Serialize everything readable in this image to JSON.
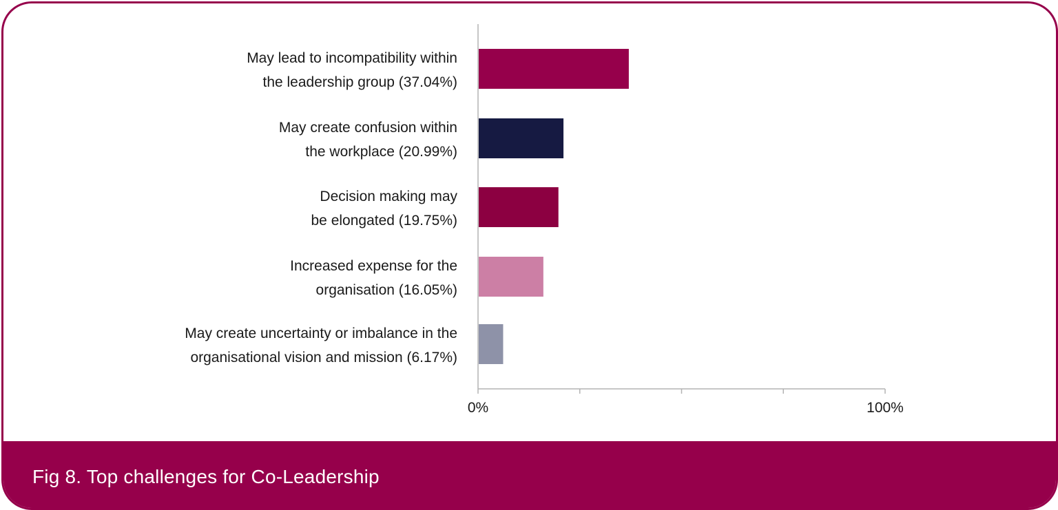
{
  "caption": "Fig 8. Top challenges for Co-Leadership",
  "colors": {
    "frame": "#96004b",
    "axis": "#b3b3b3"
  },
  "chart_data": {
    "type": "bar",
    "orientation": "horizontal",
    "categories": [
      [
        "May lead to incompatibility within",
        "the leadership group (37.04%)"
      ],
      [
        "May create confusion within",
        "the workplace (20.99%)"
      ],
      [
        "Decision making may",
        "be elongated (19.75%)"
      ],
      [
        "Increased expense for the",
        "organisation (16.05%)"
      ],
      [
        "May create uncertainty or imbalance in the",
        "organisational vision and mission (6.17%)"
      ]
    ],
    "values": [
      37.04,
      20.99,
      19.75,
      16.05,
      6.17
    ],
    "bar_colors": [
      "#96004b",
      "#161a42",
      "#8c0041",
      "#cc7fa5",
      "#8e92a8"
    ],
    "xlim": [
      0,
      100
    ],
    "x_tick_labels": [
      "0%",
      "100%"
    ],
    "x_minor_ticks": [
      25,
      50,
      75
    ],
    "grid": false,
    "title": "",
    "xlabel": "",
    "ylabel": ""
  }
}
